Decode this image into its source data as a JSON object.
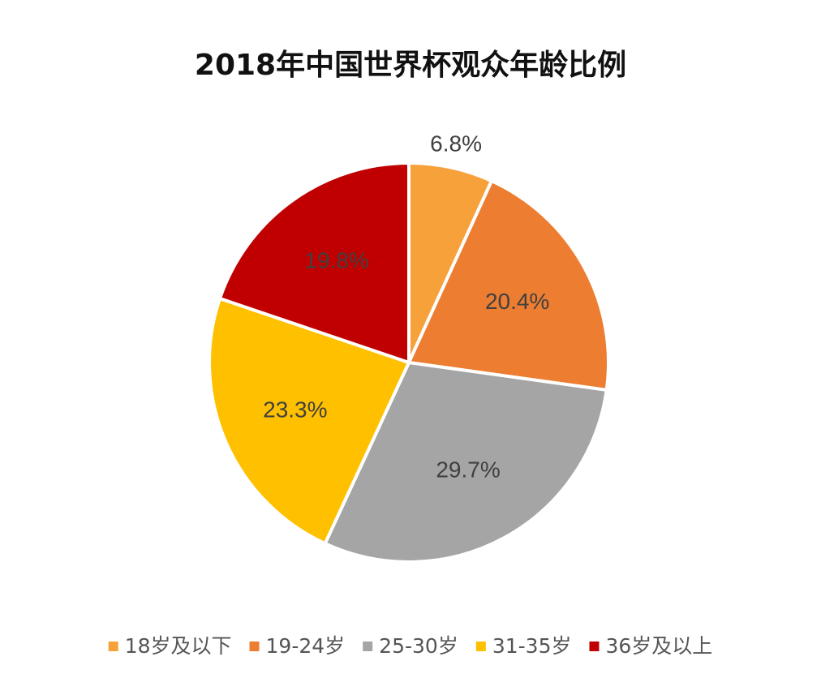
{
  "chart_data": {
    "type": "pie",
    "title": "2018年中国世界杯观众年龄比例",
    "categories": [
      "18岁及以下",
      "19-24岁",
      "25-30岁",
      "31-35岁",
      "36岁及以上"
    ],
    "values": [
      6.8,
      20.4,
      29.7,
      23.3,
      19.8
    ],
    "value_labels": [
      "6.8%",
      "20.4%",
      "29.7%",
      "23.3%",
      "19.8%"
    ],
    "colors": [
      "#F7A13B",
      "#ED7D31",
      "#A5A5A5",
      "#FFC000",
      "#C00000"
    ],
    "legend": "bottom"
  }
}
